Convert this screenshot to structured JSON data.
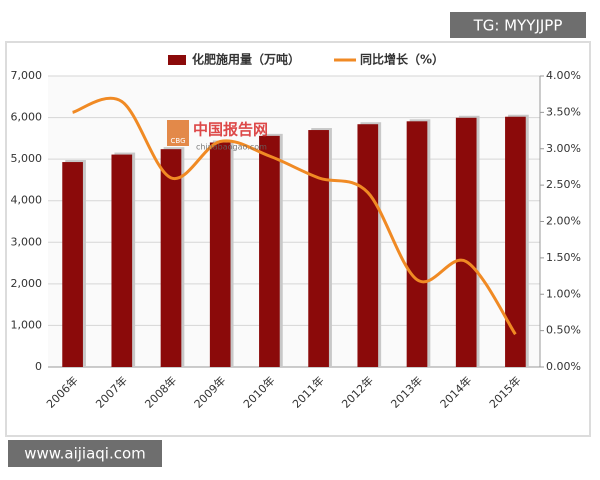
{
  "chart_data": {
    "type": "bar",
    "categories": [
      "2006年",
      "2007年",
      "2008年",
      "2009年",
      "2010年",
      "2011年",
      "2012年",
      "2013年",
      "2014年",
      "2015年"
    ],
    "series": [
      {
        "name": "化肥施用量（万吨）",
        "type": "bar",
        "color": "#8b0a0a",
        "values": [
          4930,
          5110,
          5240,
          5400,
          5560,
          5700,
          5840,
          5910,
          5995,
          6020
        ]
      },
      {
        "name": "同比增长（%）",
        "type": "line",
        "axis": "y2",
        "color": "#f08a24",
        "values": [
          3.5,
          3.65,
          2.6,
          3.1,
          2.9,
          2.6,
          2.4,
          1.2,
          1.45,
          0.45
        ]
      }
    ],
    "ylim": [
      0,
      7000
    ],
    "yticks": [
      0,
      {
        "value": 1000,
        "label": "1,000"
      },
      {
        "value": 2000,
        "label": "2,000"
      },
      {
        "value": 3000,
        "label": "3,000"
      },
      {
        "value": 4000,
        "label": "4,000"
      },
      {
        "value": 5000,
        "label": "5,000"
      },
      {
        "value": 6000,
        "label": "6,000"
      },
      {
        "value": 7000,
        "label": "7,000"
      }
    ],
    "y2lim": [
      0,
      4
    ],
    "y2ticks": [
      {
        "value": 0,
        "label": "0.00%"
      },
      {
        "value": 0.5,
        "label": "0.50%"
      },
      {
        "value": 1,
        "label": "1.00%"
      },
      {
        "value": 1.5,
        "label": "1.50%"
      },
      {
        "value": 2,
        "label": "2.00%"
      },
      {
        "value": 2.5,
        "label": "2.50%"
      },
      {
        "value": 3,
        "label": "3.00%"
      },
      {
        "value": 3.5,
        "label": "3.50%"
      },
      {
        "value": 4,
        "label": "4.00%"
      }
    ],
    "grid": true
  },
  "logo": {
    "badge": "CBG",
    "title": "中国报告网",
    "subtitle": "chinabaogao.com"
  },
  "watermarks": [
    "TG: MYYJJPP",
    "www.aijiaqi.com"
  ]
}
